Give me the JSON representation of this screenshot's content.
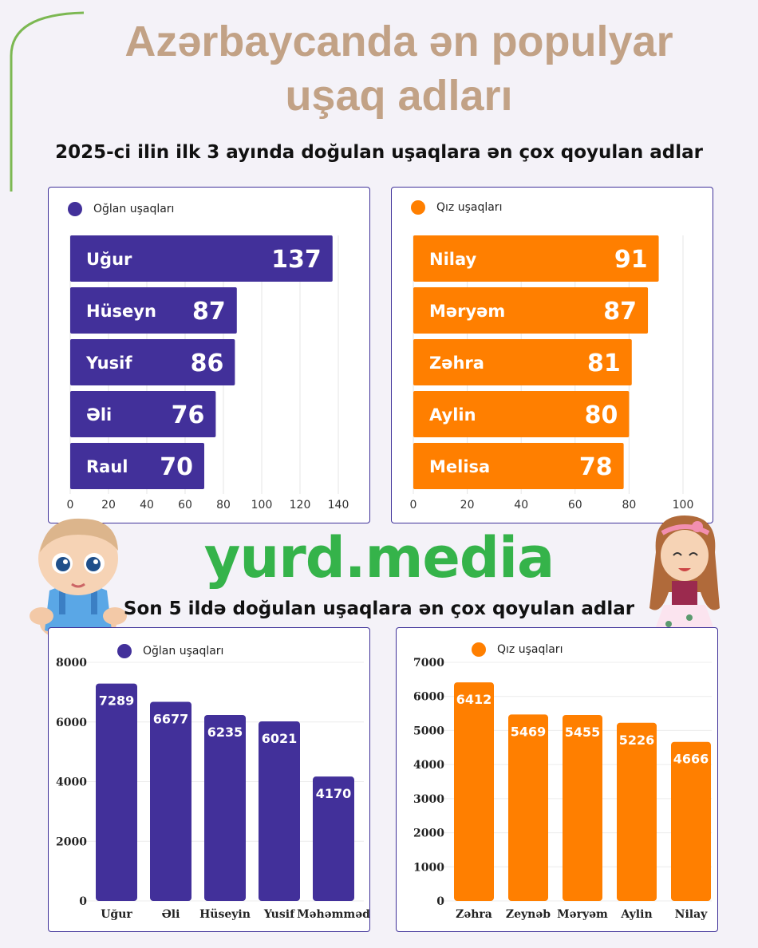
{
  "title_line1": "Azərbaycanda ən populyar",
  "title_line2": "uşaq adları",
  "section1_title": "2025-ci ilin ilk 3 ayında doğulan uşaqlara ən çox qoyulan adlar",
  "section2_title": "Son 5 ildə doğulan uşaqlara ən çox qoyulan adlar",
  "logo_text": "yurd.media",
  "colors": {
    "boys": "#42309a",
    "girls": "#ff7f00",
    "title": "#c2a286",
    "logo": "#35b34a"
  },
  "chart_data": [
    {
      "type": "bar",
      "orientation": "horizontal",
      "legend": "Oğlan uşaqları",
      "categories": [
        "Uğur",
        "Hüseyn",
        "Yusif",
        "Əli",
        "Raul"
      ],
      "values": [
        137,
        87,
        86,
        76,
        70
      ],
      "xlim": [
        0,
        140
      ],
      "ticks": [
        "0",
        "20",
        "40",
        "60",
        "80",
        "100",
        "120",
        "140"
      ],
      "grid": true
    },
    {
      "type": "bar",
      "orientation": "horizontal",
      "legend": "Qız uşaqları",
      "categories": [
        "Nilay",
        "Məryəm",
        "Zəhra",
        "Aylin",
        "Melisa"
      ],
      "values": [
        91,
        87,
        81,
        80,
        78
      ],
      "xlim": [
        0,
        100
      ],
      "ticks": [
        "0",
        "20",
        "40",
        "60",
        "80",
        "100"
      ],
      "grid": true
    },
    {
      "type": "bar",
      "orientation": "vertical",
      "legend": "Oğlan uşaqları",
      "categories": [
        "Uğur",
        "Əli",
        "Hüseyin",
        "Yusif",
        "Məhəmməd"
      ],
      "values": [
        7289,
        6677,
        6235,
        6021,
        4170
      ],
      "ylim": [
        0,
        8000
      ],
      "ticks": [
        "0",
        "2000",
        "4000",
        "6000",
        "8000"
      ],
      "grid": true
    },
    {
      "type": "bar",
      "orientation": "vertical",
      "legend": "Qız uşaqları",
      "categories": [
        "Zəhra",
        "Zeynəb",
        "Məryəm",
        "Aylin",
        "Nilay"
      ],
      "values": [
        6412,
        5469,
        5455,
        5226,
        4666
      ],
      "ylim": [
        0,
        7000
      ],
      "ticks": [
        "0",
        "1000",
        "2000",
        "3000",
        "4000",
        "5000",
        "6000",
        "7000"
      ],
      "grid": true
    }
  ]
}
